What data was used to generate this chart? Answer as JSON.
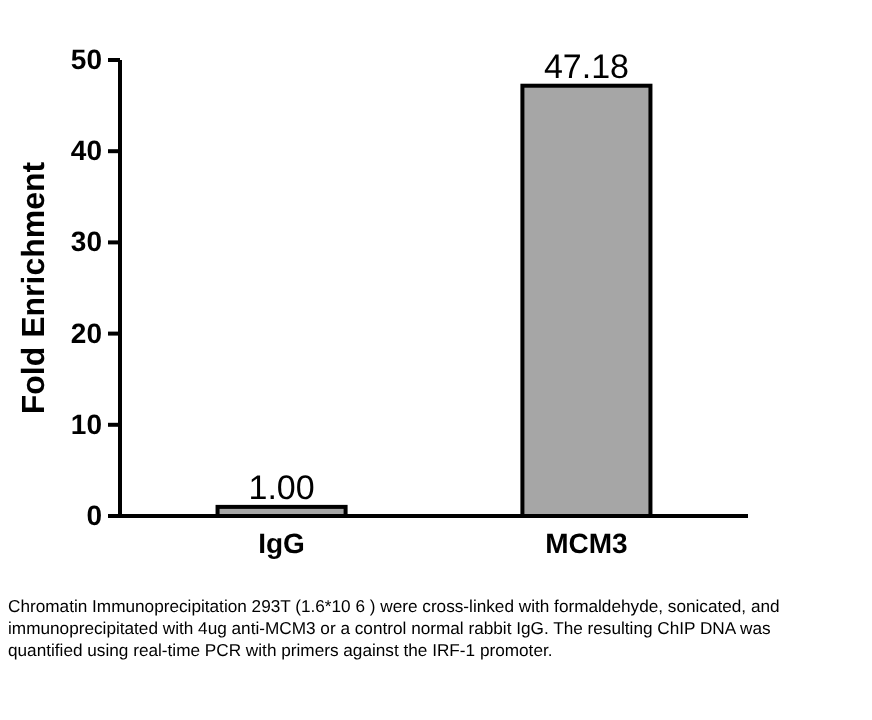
{
  "chart_data": {
    "type": "bar",
    "ylabel": "Fold Enrichment",
    "categories": [
      "IgG",
      "MCM3"
    ],
    "values": [
      1.0,
      47.18
    ],
    "color": "#a6a6a6",
    "value_labels": [
      "1.00",
      "47.18"
    ],
    "ylim": [
      0,
      50
    ],
    "yticks": [
      0,
      10,
      20,
      30,
      40,
      50
    ],
    "grid": false,
    "annotations": [
      "Chromatin Immunoprecipitation 293T (1.6*10 6 ) were cross-linked with formaldehyde, sonicated, and immunoprecipitated with 4ug anti-MCM3 or a control normal rabbit IgG. The resulting ChIP DNA was quantified using real-time PCR with primers against the IRF-1 promoter."
    ]
  }
}
